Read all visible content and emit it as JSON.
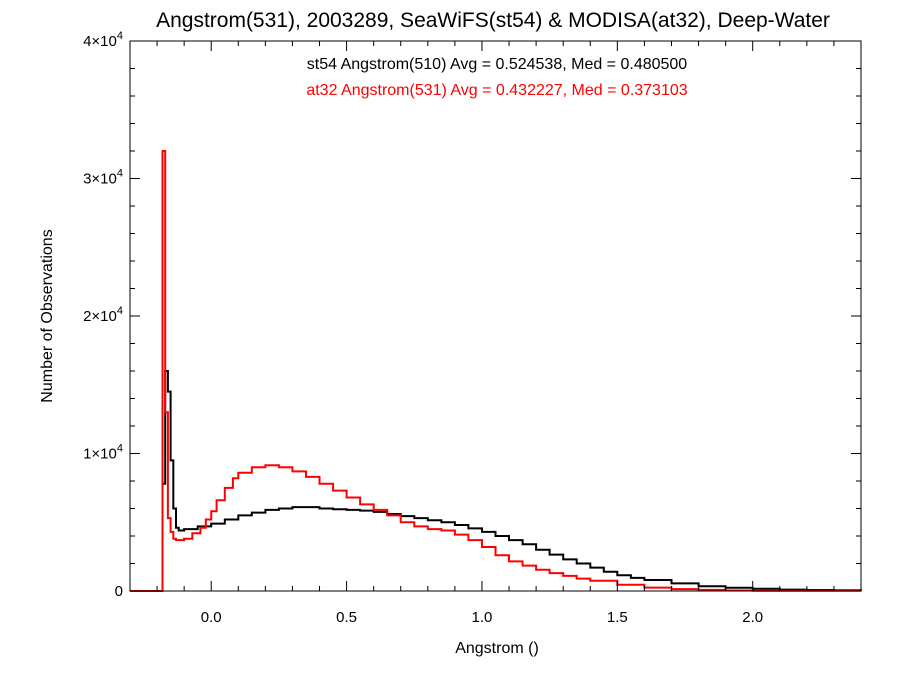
{
  "chart_data": {
    "type": "line",
    "step": true,
    "title": "Angstrom(531), 2003289, SeaWiFS(st54) & MODISA(at32), Deep-Water",
    "xlabel": "Angstrom ()",
    "ylabel": "Number of Observations",
    "xlim": [
      -0.3,
      2.4
    ],
    "ylim": [
      0,
      40000
    ],
    "x_ticks": [
      0.0,
      0.5,
      1.0,
      1.5,
      2.0
    ],
    "x_tick_labels": [
      "0.0",
      "0.5",
      "1.0",
      "1.5",
      "2.0"
    ],
    "y_ticks": [
      0,
      10000,
      20000,
      30000,
      40000
    ],
    "y_tick_labels": [
      {
        "base": "0",
        "exp": ""
      },
      {
        "base": "1×10",
        "exp": "4"
      },
      {
        "base": "2×10",
        "exp": "4"
      },
      {
        "base": "3×10",
        "exp": "4"
      },
      {
        "base": "4×10",
        "exp": "4"
      }
    ],
    "grid": false,
    "annotations": [
      {
        "text": "st54 Angstrom(510) Avg = 0.524538, Med = 0.480500",
        "color": "#000000"
      },
      {
        "text": "at32 Angstrom(531) Avg = 0.432227, Med = 0.373103",
        "color": "#ff0000"
      }
    ],
    "series": [
      {
        "color": "#000000",
        "x": [
          -0.3,
          -0.19,
          -0.18,
          -0.17,
          -0.16,
          -0.15,
          -0.14,
          -0.13,
          -0.12,
          -0.1,
          -0.05,
          0.0,
          0.05,
          0.1,
          0.15,
          0.2,
          0.25,
          0.3,
          0.35,
          0.4,
          0.45,
          0.5,
          0.55,
          0.6,
          0.65,
          0.7,
          0.75,
          0.8,
          0.85,
          0.9,
          0.95,
          1.0,
          1.05,
          1.1,
          1.15,
          1.2,
          1.25,
          1.3,
          1.35,
          1.4,
          1.45,
          1.5,
          1.55,
          1.6,
          1.7,
          1.8,
          1.9,
          2.0,
          2.1,
          2.2,
          2.3,
          2.4
        ],
        "y": [
          0,
          0,
          7800,
          16000,
          14500,
          9500,
          6000,
          4600,
          4400,
          4500,
          4700,
          4900,
          5200,
          5500,
          5700,
          5900,
          6000,
          6100,
          6100,
          6000,
          5950,
          5900,
          5850,
          5750,
          5600,
          5450,
          5300,
          5150,
          5000,
          4800,
          4550,
          4300,
          4000,
          3700,
          3400,
          3000,
          2650,
          2300,
          2000,
          1700,
          1400,
          1150,
          950,
          800,
          550,
          350,
          230,
          160,
          100,
          70,
          50,
          0
        ]
      },
      {
        "color": "#ff0000",
        "x": [
          -0.3,
          -0.19,
          -0.18,
          -0.17,
          -0.16,
          -0.15,
          -0.14,
          -0.13,
          -0.12,
          -0.1,
          -0.07,
          -0.04,
          -0.02,
          0.0,
          0.02,
          0.05,
          0.08,
          0.1,
          0.15,
          0.2,
          0.25,
          0.3,
          0.35,
          0.4,
          0.45,
          0.5,
          0.55,
          0.6,
          0.65,
          0.7,
          0.75,
          0.8,
          0.85,
          0.9,
          0.95,
          1.0,
          1.05,
          1.1,
          1.15,
          1.2,
          1.25,
          1.3,
          1.35,
          1.4,
          1.5,
          1.6,
          1.7,
          1.8,
          1.9,
          2.0,
          2.4
        ],
        "y": [
          0,
          0,
          32000,
          13000,
          5300,
          4300,
          3800,
          3700,
          3700,
          3800,
          4200,
          4600,
          5200,
          5800,
          6600,
          7500,
          8200,
          8600,
          9000,
          9150,
          9000,
          8700,
          8300,
          7800,
          7300,
          6800,
          6300,
          5900,
          5500,
          5000,
          4700,
          4500,
          4400,
          4100,
          3700,
          3200,
          2600,
          2150,
          1850,
          1550,
          1300,
          1100,
          900,
          750,
          450,
          250,
          140,
          80,
          40,
          20,
          0
        ]
      }
    ]
  }
}
